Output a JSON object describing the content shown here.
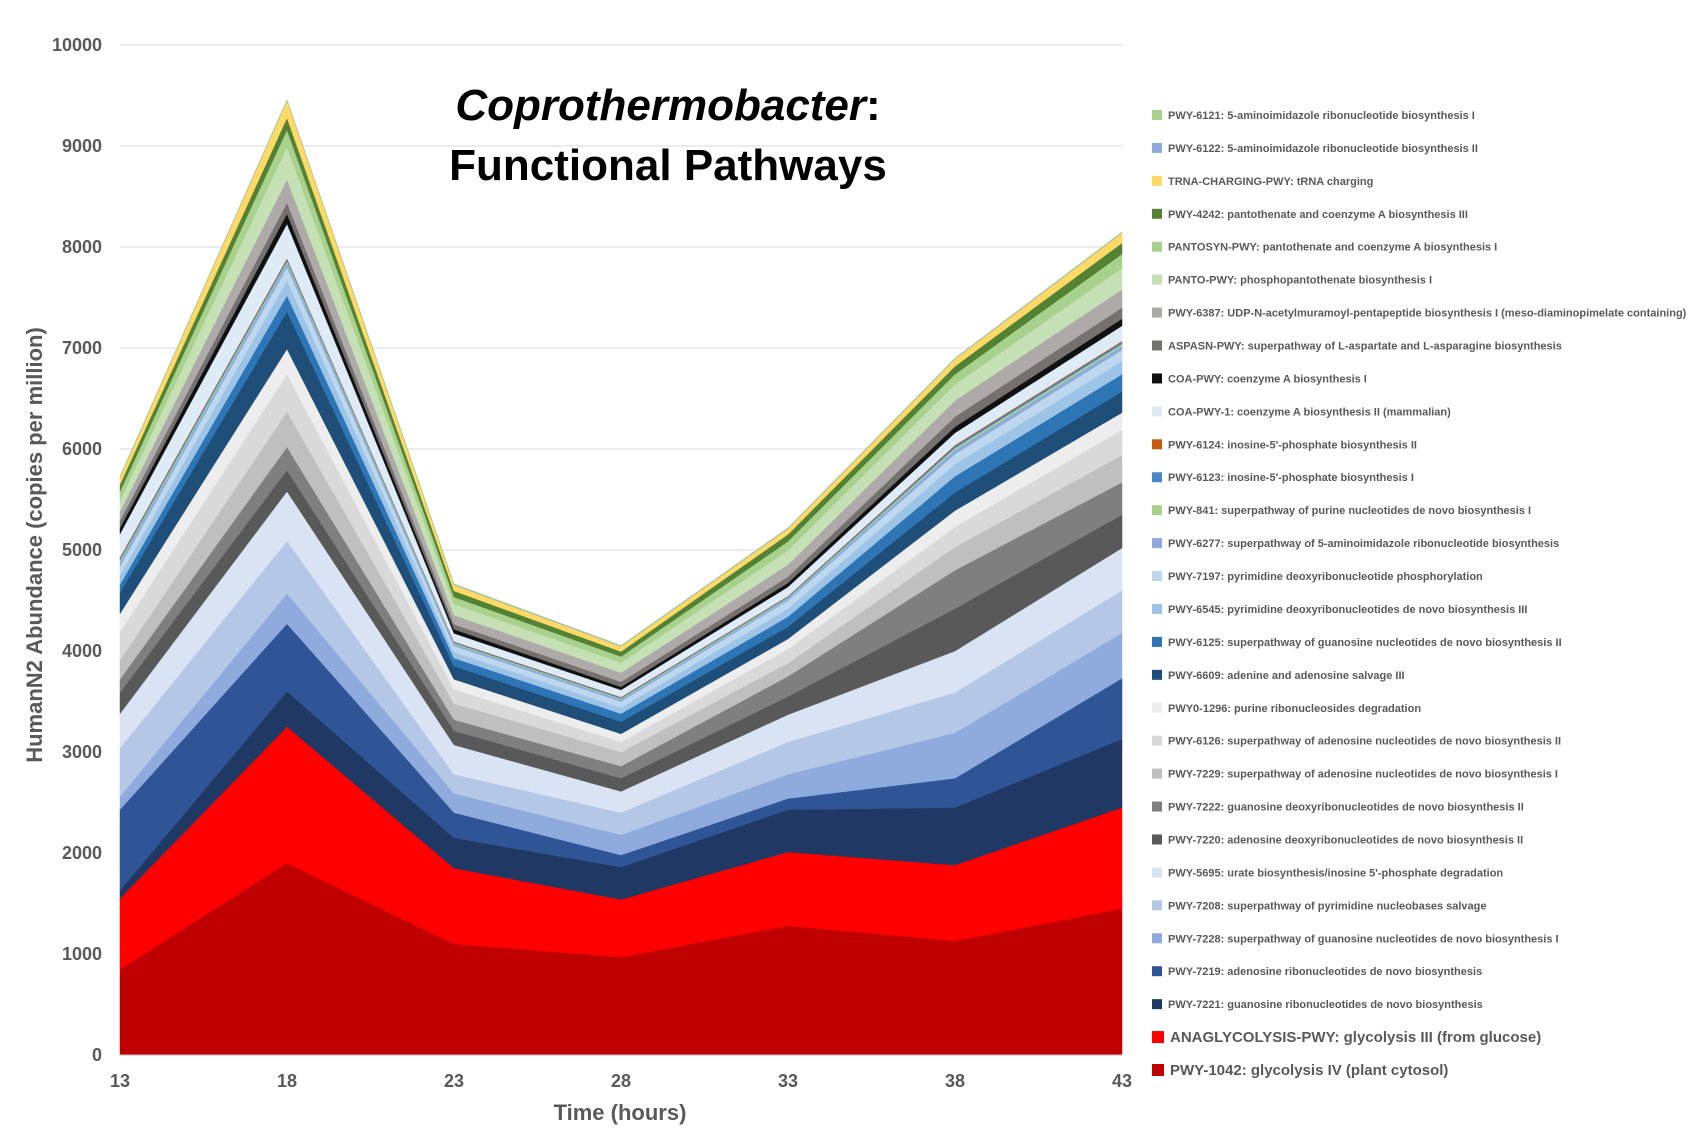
{
  "chart_data": {
    "type": "area",
    "stacked": true,
    "title_italic": "Coprothermobacter",
    "title_rest": ":",
    "title_line2": "Functional Pathways",
    "xlabel": "Time (hours)",
    "ylabel": "HumanN2 Abundance (copies per million)",
    "x": [
      13,
      18,
      23,
      28,
      33,
      38,
      43
    ],
    "ylim": [
      0,
      10000
    ],
    "yticks": [
      0,
      1000,
      2000,
      3000,
      4000,
      5000,
      6000,
      7000,
      8000,
      9000,
      10000
    ],
    "grid": true,
    "legend_position": "right",
    "series": [
      {
        "name": "PWY-1042: glycolysis IV (plant cytosol)",
        "color": "#c00000",
        "values": [
          850,
          1900,
          1100,
          970,
          1280,
          1130,
          1450
        ]
      },
      {
        "name": "ANAGLYCOLYSIS-PWY: glycolysis III (from glucose)",
        "color": "#ff0000",
        "values": [
          700,
          1350,
          750,
          570,
          730,
          750,
          1000
        ]
      },
      {
        "name": "PWY-7221: guanosine ribonucleotides de novo biosynthesis",
        "color": "#203864",
        "values": [
          80,
          350,
          300,
          320,
          420,
          570,
          680
        ]
      },
      {
        "name": "PWY-7219: adenosine ribonucleotides de novo biosynthesis",
        "color": "#2f5597",
        "values": [
          800,
          670,
          250,
          120,
          110,
          290,
          600
        ]
      },
      {
        "name": "PWY-7228: superpathway of guanosine nucleotides de novo biosynthesis I",
        "color": "#8faadc",
        "values": [
          130,
          300,
          190,
          200,
          240,
          450,
          450
        ]
      },
      {
        "name": "PWY-7208: superpathway of pyrimidine nucleobases salvage",
        "color": "#b4c7e7",
        "values": [
          480,
          520,
          190,
          220,
          320,
          400,
          420
        ]
      },
      {
        "name": "PWY-5695: urate biosynthesis/inosine 5'-phosphate degradation",
        "color": "#dae3f3",
        "values": [
          340,
          490,
          290,
          210,
          270,
          410,
          420
        ]
      },
      {
        "name": "PWY-7220: adenosine deoxyribonucleotides de novo biosynthesis II",
        "color": "#595959",
        "values": [
          210,
          210,
          140,
          130,
          180,
          420,
          330
        ]
      },
      {
        "name": "PWY-7222: guanosine deoxyribonucleotides de novo biosynthesis II",
        "color": "#7f7f7f",
        "values": [
          130,
          230,
          110,
          120,
          200,
          380,
          320
        ]
      },
      {
        "name": "PWY-7229: superpathway of adenosine nucleotides de novo biosynthesis I",
        "color": "#bfbfbf",
        "values": [
          190,
          350,
          160,
          140,
          130,
          230,
          270
        ]
      },
      {
        "name": "PWY-6126: superpathway of adenosine nucleotides de novo biosynthesis II",
        "color": "#d9d9d9",
        "values": [
          280,
          370,
          140,
          100,
          140,
          200,
          250
        ]
      },
      {
        "name": "PWY0-1296: purine ribonucleosides degradation",
        "color": "#ededed",
        "values": [
          180,
          250,
          100,
          80,
          100,
          160,
          170
        ]
      },
      {
        "name": "PWY-6609: adenine and adenosine salvage III",
        "color": "#1f4e79",
        "values": [
          210,
          370,
          130,
          120,
          120,
          180,
          210
        ]
      },
      {
        "name": "PWY-6125: superpathway of guanosine nucleotides de novo biosynthesis II",
        "color": "#2e75b6",
        "values": [
          80,
          160,
          80,
          80,
          100,
          160,
          170
        ]
      },
      {
        "name": "PWY-6545: pyrimidine deoxyribonucleotides de novo biosynthesis III",
        "color": "#9dc3e6",
        "values": [
          90,
          150,
          60,
          60,
          80,
          120,
          130
        ]
      },
      {
        "name": "PWY-7197: pyrimidine deoxyribonucleotide phosphorylation",
        "color": "#bdd7ee",
        "values": [
          90,
          130,
          60,
          60,
          80,
          100,
          110
        ]
      },
      {
        "name": "PWY-6277: superpathway of 5-aminoimidazole ribonucleotide biosynthesis",
        "color": "#8eaadb",
        "values": [
          40,
          40,
          20,
          20,
          20,
          40,
          40
        ]
      },
      {
        "name": "PWY-841: superpathway of purine nucleotides de novo biosynthesis I",
        "color": "#a9d18e",
        "values": [
          20,
          20,
          10,
          10,
          10,
          20,
          20
        ]
      },
      {
        "name": "PWY-6123: inosine-5'-phosphate biosynthesis I",
        "color": "#4a86c5",
        "values": [
          20,
          20,
          10,
          10,
          10,
          20,
          20
        ]
      },
      {
        "name": "PWY-6124: inosine-5'-phosphate biosynthesis II",
        "color": "#c55a11",
        "values": [
          10,
          10,
          5,
          5,
          5,
          10,
          10
        ]
      },
      {
        "name": "COA-PWY-1: coenzyme A biosynthesis II (mammalian)",
        "color": "#deebf7",
        "values": [
          230,
          340,
          80,
          70,
          90,
          120,
          150
        ]
      },
      {
        "name": "COA-PWY: coenzyme A biosynthesis I",
        "color": "#111111",
        "values": [
          60,
          100,
          40,
          30,
          40,
          60,
          70
        ]
      },
      {
        "name": "ASPASN-PWY: superpathway of L-aspartate and L-asparagine biosynthesis",
        "color": "#767171",
        "values": [
          70,
          110,
          50,
          50,
          60,
          100,
          110
        ]
      },
      {
        "name": "PWY-6387: UDP-N-acetylmuramoyl-pentapeptide biosynthesis I (meso-diaminopimelate containing)",
        "color": "#aeaaaa",
        "values": [
          90,
          230,
          90,
          90,
          120,
          160,
          180
        ]
      },
      {
        "name": "PANTO-PWY: phosphopantothenate biosynthesis I",
        "color": "#c5e0b4",
        "values": [
          110,
          320,
          110,
          100,
          140,
          160,
          210
        ]
      },
      {
        "name": "PANTOSYN-PWY: pantothenate and coenzyme A biosynthesis I",
        "color": "#a9d18e",
        "values": [
          90,
          170,
          70,
          60,
          90,
          100,
          140
        ]
      },
      {
        "name": "PWY-4242: pantothenate and coenzyme A biosynthesis III",
        "color": "#548235",
        "values": [
          70,
          120,
          60,
          50,
          70,
          80,
          110
        ]
      },
      {
        "name": "TRNA-CHARGING-PWY: tRNA charging",
        "color": "#ffd966",
        "values": [
          70,
          170,
          60,
          50,
          55,
          70,
          100
        ]
      },
      {
        "name": "PWY-6122: 5-aminoimidazole ribonucleotide biosynthesis II",
        "color": "#8eaadb",
        "values": [
          5,
          5,
          5,
          5,
          5,
          5,
          5
        ]
      },
      {
        "name": "PWY-6121: 5-aminoimidazole ribonucleotide biosynthesis I",
        "color": "#a9d18e",
        "values": [
          5,
          5,
          5,
          5,
          5,
          5,
          5
        ]
      }
    ]
  }
}
